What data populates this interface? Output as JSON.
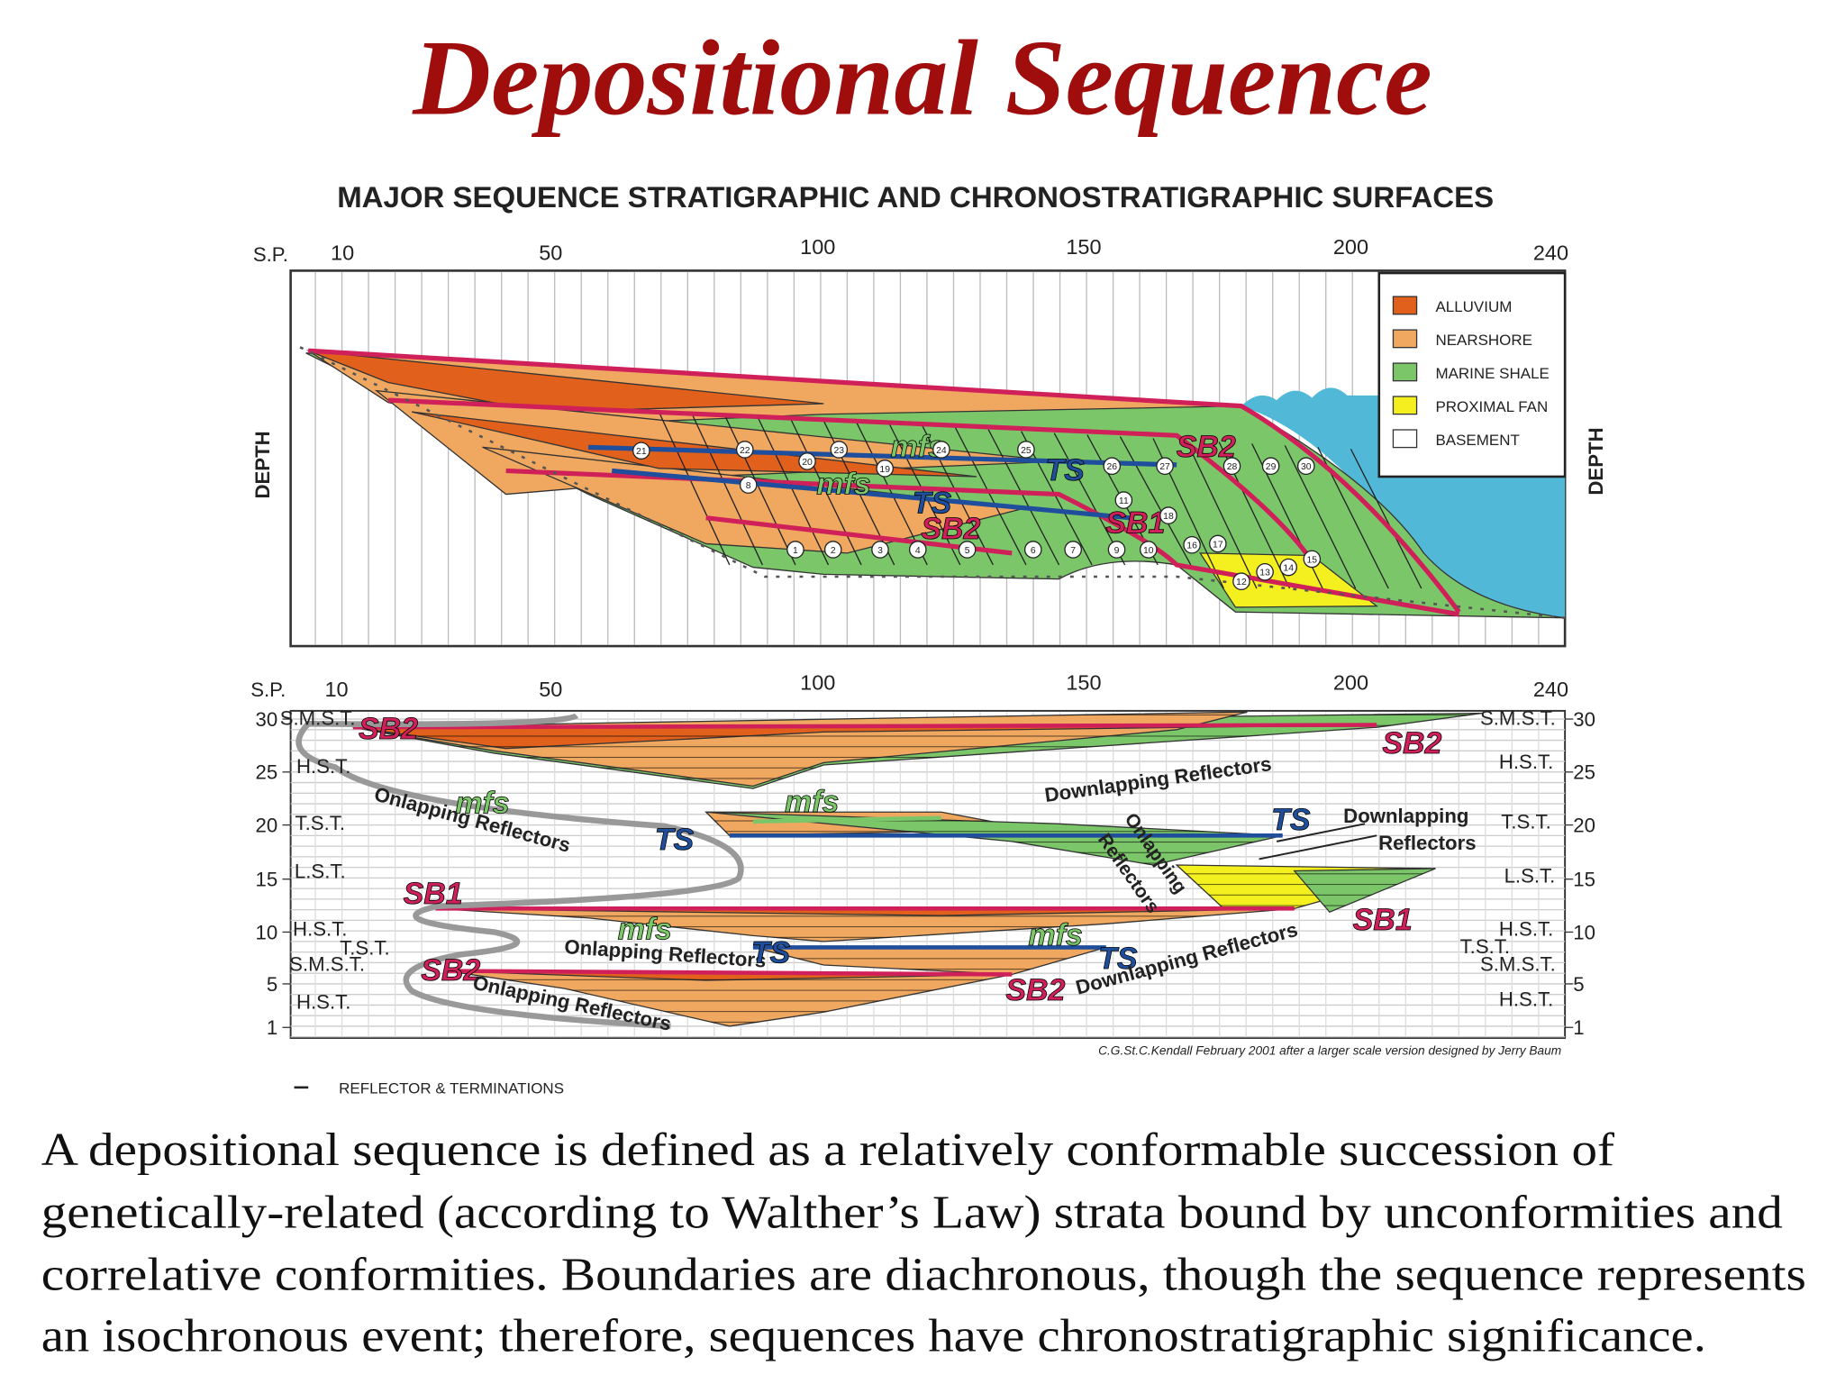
{
  "title": "Depositional Sequence",
  "figure": {
    "title": "MAJOR SEQUENCE STRATIGRAPHIC AND CHRONOSTRATIGRAPHIC SURFACES",
    "upper_panel": {
      "sp_label": "S.P.",
      "sp_ticks": [
        "10",
        "50",
        "100",
        "150",
        "200",
        "240"
      ],
      "depth_label": "DEPTH",
      "legend": [
        "ALLUVIUM",
        "NEARSHORE",
        "MARINE SHALE",
        "PROXIMAL FAN",
        "BASEMENT"
      ],
      "surface_labels": [
        "mfs",
        "mfs",
        "TS",
        "TS",
        "SB2",
        "SB2",
        "SB1"
      ],
      "point_labels": [
        "1",
        "2",
        "3",
        "4",
        "5",
        "6",
        "7",
        "8",
        "9",
        "10",
        "11",
        "12",
        "13",
        "14",
        "15",
        "16",
        "17",
        "18",
        "19",
        "20",
        "21",
        "22",
        "23",
        "24",
        "25",
        "26",
        "27",
        "28",
        "29",
        "30"
      ]
    },
    "lower_panel": {
      "sp_label": "S.P.",
      "sp_ticks": [
        "10",
        "50",
        "100",
        "150",
        "200",
        "240"
      ],
      "depth_ticks": [
        "30",
        "25",
        "20",
        "15",
        "10",
        "5",
        "1"
      ],
      "systems_tracts_left": [
        "S.M.S.T.",
        "H.S.T.",
        "T.S.T.",
        "L.S.T.",
        "H.S.T.",
        "T.S.T.",
        "S.M.S.T.",
        "H.S.T."
      ],
      "systems_tracts_right": [
        "S.M.S.T.",
        "H.S.T.",
        "T.S.T.",
        "L.S.T.",
        "H.S.T.",
        "T.S.T.",
        "S.M.S.T.",
        "H.S.T."
      ],
      "annotations": [
        "SB2",
        "SB2",
        "Downlapping Reflectors",
        "mfs",
        "Onlapping Reflectors",
        "mfs",
        "TS",
        "Downlapping",
        "Reflectors",
        "TS",
        "Onlapping",
        "Reflectors",
        "SB1",
        "SB1",
        "mfs",
        "Onlapping Reflectors",
        "TS",
        "mfs",
        "TS",
        "Downlapping Reflectors",
        "SB2",
        "SB2",
        "Onlapping Reflectors"
      ]
    },
    "credit": "C.G.St.C.Kendall February 2001 after a larger scale version designed by Jerry Baum",
    "key": "REFLECTOR & TERMINATIONS"
  },
  "description": {
    "lines": [
      "A depositional sequence is defined as a relatively conformable succession of",
      "genetically-related (according to Walther’s Law) strata bound by unconformities and",
      "correlative conformities.  Boundaries are diachronous, though the sequence represents",
      "an isochronous event; therefore, sequences have chronostratigraphic significance."
    ]
  }
}
